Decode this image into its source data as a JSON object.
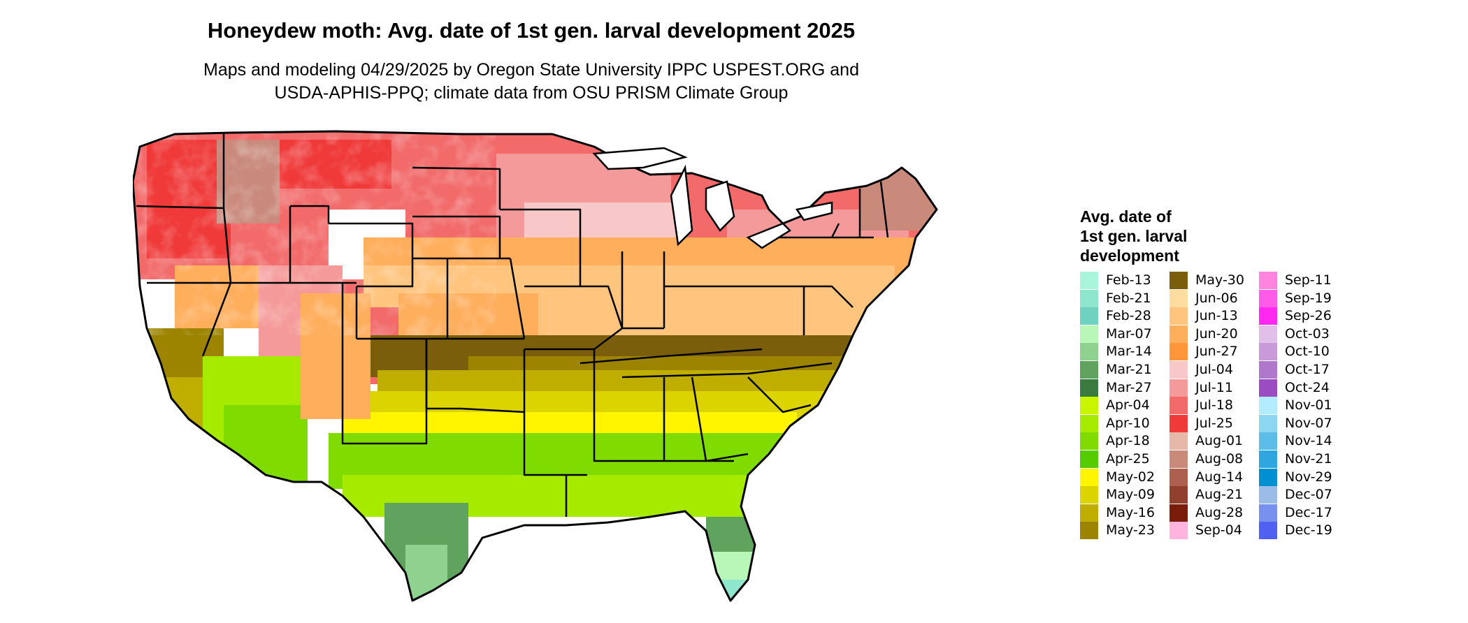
{
  "title": "Honeydew moth: Avg. date of 1st gen. larval development 2025",
  "subtitle_lines": [
    "Maps and modeling 04/29/2025 by Oregon State University IPPC USPEST.ORG and",
    "USDA-APHIS-PPQ; climate data from OSU PRISM Climate Group"
  ],
  "legend": {
    "title_lines": [
      "Avg. date of",
      "1st gen. larval",
      "development"
    ],
    "items": [
      {
        "label": "Feb-13",
        "color": "#a8f5dc"
      },
      {
        "label": "Feb-21",
        "color": "#8ee6cc"
      },
      {
        "label": "Feb-28",
        "color": "#6fd1c0"
      },
      {
        "label": "Mar-07",
        "color": "#b8f7b8"
      },
      {
        "label": "Mar-14",
        "color": "#8fd18f"
      },
      {
        "label": "Mar-21",
        "color": "#5fa35f"
      },
      {
        "label": "Mar-27",
        "color": "#3a7a3e"
      },
      {
        "label": "Apr-04",
        "color": "#c8f500"
      },
      {
        "label": "Apr-10",
        "color": "#a6ea00"
      },
      {
        "label": "Apr-18",
        "color": "#80dc00"
      },
      {
        "label": "Apr-25",
        "color": "#55cc00"
      },
      {
        "label": "May-02",
        "color": "#fff500"
      },
      {
        "label": "May-09",
        "color": "#dcd400"
      },
      {
        "label": "May-16",
        "color": "#bfae00"
      },
      {
        "label": "May-23",
        "color": "#9c8400"
      },
      {
        "label": "May-30",
        "color": "#7a5e0c"
      },
      {
        "label": "Jun-06",
        "color": "#ffdca0"
      },
      {
        "label": "Jun-13",
        "color": "#ffc47e"
      },
      {
        "label": "Jun-20",
        "color": "#ffae5c"
      },
      {
        "label": "Jun-27",
        "color": "#ff963a"
      },
      {
        "label": "Jul-04",
        "color": "#f8c8c8"
      },
      {
        "label": "Jul-11",
        "color": "#f59a9a"
      },
      {
        "label": "Jul-18",
        "color": "#f26a6a"
      },
      {
        "label": "Jul-25",
        "color": "#f03a3a"
      },
      {
        "label": "Aug-01",
        "color": "#e6b8aa"
      },
      {
        "label": "Aug-08",
        "color": "#c98a7c"
      },
      {
        "label": "Aug-14",
        "color": "#ad6050"
      },
      {
        "label": "Aug-21",
        "color": "#92402e"
      },
      {
        "label": "Aug-28",
        "color": "#7a1c0a"
      },
      {
        "label": "Sep-04",
        "color": "#ffb4e0"
      },
      {
        "label": "Sep-11",
        "color": "#ff84e0"
      },
      {
        "label": "Sep-19",
        "color": "#ff5ae8"
      },
      {
        "label": "Sep-26",
        "color": "#ff28f0"
      },
      {
        "label": "Oct-03",
        "color": "#e0c0e8"
      },
      {
        "label": "Oct-10",
        "color": "#c89ad8"
      },
      {
        "label": "Oct-17",
        "color": "#b078cc"
      },
      {
        "label": "Oct-24",
        "color": "#9a4cc0"
      },
      {
        "label": "Nov-01",
        "color": "#b4ecff"
      },
      {
        "label": "Nov-07",
        "color": "#8cd6f2"
      },
      {
        "label": "Nov-14",
        "color": "#5cbde8"
      },
      {
        "label": "Nov-21",
        "color": "#30a6e0"
      },
      {
        "label": "Nov-29",
        "color": "#0090d2"
      },
      {
        "label": "Dec-07",
        "color": "#9cbce8"
      },
      {
        "label": "Dec-17",
        "color": "#7890ee"
      },
      {
        "label": "Dec-19",
        "color": "#5060f0"
      }
    ]
  }
}
